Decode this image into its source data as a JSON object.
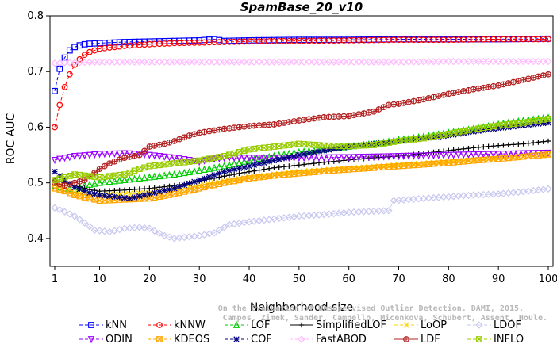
{
  "chart_data": {
    "type": "line",
    "title": "SpamBase_20_v10",
    "xlabel": "Neighborhood size",
    "ylabel": "ROC AUC",
    "xlim": [
      1,
      100
    ],
    "ylim": [
      0.35,
      0.8
    ],
    "x_ticks": [
      1,
      10,
      20,
      30,
      40,
      50,
      60,
      70,
      80,
      90,
      100
    ],
    "y_ticks": [
      0.4,
      0.5,
      0.6,
      0.7,
      0.8
    ],
    "grid": false,
    "legend_position": "bottom",
    "watermark": "Campos, Zimek, Sander, Campello, Micenkova, Schubert, Assent, Houle. On the Evaluation of Unsupervised Outlier Detection. DAMI, 2015.",
    "series": [
      {
        "name": "kNN",
        "color": "#0000ff",
        "marker": "square",
        "dash": "4,3",
        "points": [
          [
            1,
            0.665
          ],
          [
            2,
            0.705
          ],
          [
            3,
            0.725
          ],
          [
            4,
            0.738
          ],
          [
            5,
            0.744
          ],
          [
            6,
            0.747
          ],
          [
            7,
            0.749
          ],
          [
            8,
            0.75
          ],
          [
            10,
            0.751
          ],
          [
            15,
            0.753
          ],
          [
            20,
            0.754
          ],
          [
            25,
            0.755
          ],
          [
            30,
            0.756
          ],
          [
            33,
            0.758
          ],
          [
            35,
            0.755
          ],
          [
            40,
            0.756
          ],
          [
            50,
            0.757
          ],
          [
            60,
            0.757
          ],
          [
            70,
            0.758
          ],
          [
            80,
            0.758
          ],
          [
            90,
            0.758
          ],
          [
            100,
            0.759
          ]
        ]
      },
      {
        "name": "kNNW",
        "color": "#ff0000",
        "marker": "circle",
        "dash": "4,3",
        "points": [
          [
            1,
            0.6
          ],
          [
            2,
            0.64
          ],
          [
            3,
            0.672
          ],
          [
            4,
            0.695
          ],
          [
            5,
            0.712
          ],
          [
            6,
            0.722
          ],
          [
            7,
            0.73
          ],
          [
            8,
            0.735
          ],
          [
            10,
            0.741
          ],
          [
            15,
            0.746
          ],
          [
            20,
            0.749
          ],
          [
            25,
            0.751
          ],
          [
            30,
            0.752
          ],
          [
            35,
            0.753
          ],
          [
            40,
            0.754
          ],
          [
            50,
            0.755
          ],
          [
            60,
            0.756
          ],
          [
            70,
            0.757
          ],
          [
            80,
            0.757
          ],
          [
            90,
            0.758
          ],
          [
            100,
            0.758
          ]
        ]
      },
      {
        "name": "LOF",
        "color": "#00cc00",
        "marker": "triangle",
        "dash": "4,3",
        "points": [
          [
            1,
            0.495
          ],
          [
            3,
            0.49
          ],
          [
            5,
            0.488
          ],
          [
            7,
            0.495
          ],
          [
            10,
            0.5
          ],
          [
            15,
            0.505
          ],
          [
            20,
            0.51
          ],
          [
            25,
            0.515
          ],
          [
            30,
            0.522
          ],
          [
            35,
            0.53
          ],
          [
            40,
            0.54
          ],
          [
            45,
            0.548
          ],
          [
            50,
            0.555
          ],
          [
            55,
            0.56
          ],
          [
            60,
            0.565
          ],
          [
            65,
            0.57
          ],
          [
            70,
            0.577
          ],
          [
            75,
            0.583
          ],
          [
            80,
            0.59
          ],
          [
            85,
            0.597
          ],
          [
            90,
            0.605
          ],
          [
            95,
            0.612
          ],
          [
            100,
            0.617
          ]
        ]
      },
      {
        "name": "SimplifiedLOF",
        "color": "#000000",
        "marker": "plus",
        "dash": "",
        "points": [
          [
            1,
            0.505
          ],
          [
            3,
            0.5
          ],
          [
            5,
            0.495
          ],
          [
            8,
            0.488
          ],
          [
            10,
            0.485
          ],
          [
            15,
            0.487
          ],
          [
            20,
            0.49
          ],
          [
            25,
            0.495
          ],
          [
            30,
            0.503
          ],
          [
            35,
            0.512
          ],
          [
            40,
            0.52
          ],
          [
            45,
            0.527
          ],
          [
            50,
            0.532
          ],
          [
            55,
            0.537
          ],
          [
            60,
            0.541
          ],
          [
            65,
            0.545
          ],
          [
            70,
            0.548
          ],
          [
            75,
            0.553
          ],
          [
            80,
            0.558
          ],
          [
            85,
            0.563
          ],
          [
            90,
            0.567
          ],
          [
            95,
            0.57
          ],
          [
            100,
            0.575
          ]
        ]
      },
      {
        "name": "LoOP",
        "color": "#ffd700",
        "marker": "x",
        "dash": "4,3",
        "points": [
          [
            1,
            0.5
          ],
          [
            3,
            0.492
          ],
          [
            5,
            0.483
          ],
          [
            8,
            0.477
          ],
          [
            10,
            0.478
          ],
          [
            15,
            0.48
          ],
          [
            20,
            0.482
          ],
          [
            25,
            0.488
          ],
          [
            30,
            0.495
          ],
          [
            35,
            0.503
          ],
          [
            40,
            0.51
          ],
          [
            45,
            0.515
          ],
          [
            50,
            0.52
          ],
          [
            55,
            0.523
          ],
          [
            60,
            0.526
          ],
          [
            65,
            0.529
          ],
          [
            70,
            0.532
          ],
          [
            75,
            0.535
          ],
          [
            80,
            0.538
          ],
          [
            85,
            0.541
          ],
          [
            90,
            0.544
          ],
          [
            95,
            0.547
          ],
          [
            100,
            0.55
          ]
        ]
      },
      {
        "name": "LDOF",
        "color": "#c8c8f0",
        "marker": "diamond",
        "dash": "4,3",
        "points": [
          [
            1,
            0.455
          ],
          [
            3,
            0.448
          ],
          [
            5,
            0.44
          ],
          [
            7,
            0.428
          ],
          [
            9,
            0.415
          ],
          [
            12,
            0.412
          ],
          [
            15,
            0.418
          ],
          [
            18,
            0.42
          ],
          [
            20,
            0.418
          ],
          [
            23,
            0.405
          ],
          [
            25,
            0.4
          ],
          [
            28,
            0.403
          ],
          [
            30,
            0.405
          ],
          [
            33,
            0.41
          ],
          [
            36,
            0.425
          ],
          [
            40,
            0.43
          ],
          [
            45,
            0.435
          ],
          [
            50,
            0.44
          ],
          [
            55,
            0.443
          ],
          [
            60,
            0.447
          ],
          [
            65,
            0.449
          ],
          [
            68,
            0.45
          ],
          [
            69,
            0.468
          ],
          [
            72,
            0.47
          ],
          [
            75,
            0.472
          ],
          [
            80,
            0.475
          ],
          [
            85,
            0.478
          ],
          [
            90,
            0.48
          ],
          [
            95,
            0.484
          ],
          [
            100,
            0.489
          ]
        ]
      },
      {
        "name": "ODIN",
        "color": "#9900ff",
        "marker": "triangle-down",
        "dash": "4,3",
        "points": [
          [
            1,
            0.541
          ],
          [
            3,
            0.545
          ],
          [
            5,
            0.548
          ],
          [
            8,
            0.55
          ],
          [
            10,
            0.552
          ],
          [
            15,
            0.553
          ],
          [
            18,
            0.552
          ],
          [
            20,
            0.55
          ],
          [
            25,
            0.545
          ],
          [
            28,
            0.541
          ],
          [
            30,
            0.538
          ],
          [
            32,
            0.542
          ],
          [
            35,
            0.545
          ],
          [
            40,
            0.545
          ],
          [
            50,
            0.545
          ],
          [
            60,
            0.546
          ],
          [
            70,
            0.548
          ],
          [
            80,
            0.55
          ],
          [
            90,
            0.552
          ],
          [
            100,
            0.554
          ]
        ]
      },
      {
        "name": "KDEOS",
        "color": "#ffa500",
        "marker": "square-x",
        "dash": "4,3",
        "points": [
          [
            1,
            0.49
          ],
          [
            3,
            0.485
          ],
          [
            5,
            0.478
          ],
          [
            8,
            0.472
          ],
          [
            10,
            0.468
          ],
          [
            15,
            0.47
          ],
          [
            20,
            0.472
          ],
          [
            25,
            0.48
          ],
          [
            30,
            0.49
          ],
          [
            35,
            0.5
          ],
          [
            40,
            0.508
          ],
          [
            45,
            0.513
          ],
          [
            50,
            0.517
          ],
          [
            55,
            0.521
          ],
          [
            60,
            0.524
          ],
          [
            65,
            0.527
          ],
          [
            70,
            0.53
          ],
          [
            75,
            0.533
          ],
          [
            80,
            0.536
          ],
          [
            85,
            0.54
          ],
          [
            90,
            0.543
          ],
          [
            95,
            0.547
          ],
          [
            100,
            0.551
          ]
        ]
      },
      {
        "name": "COF",
        "color": "#000080",
        "marker": "star",
        "dash": "4,3",
        "points": [
          [
            1,
            0.52
          ],
          [
            3,
            0.505
          ],
          [
            5,
            0.492
          ],
          [
            8,
            0.482
          ],
          [
            10,
            0.478
          ],
          [
            13,
            0.475
          ],
          [
            16,
            0.472
          ],
          [
            20,
            0.48
          ],
          [
            25,
            0.49
          ],
          [
            30,
            0.505
          ],
          [
            35,
            0.52
          ],
          [
            40,
            0.53
          ],
          [
            45,
            0.54
          ],
          [
            50,
            0.55
          ],
          [
            55,
            0.558
          ],
          [
            60,
            0.565
          ],
          [
            65,
            0.57
          ],
          [
            70,
            0.575
          ],
          [
            75,
            0.58
          ],
          [
            80,
            0.585
          ],
          [
            85,
            0.592
          ],
          [
            90,
            0.598
          ],
          [
            95,
            0.603
          ],
          [
            100,
            0.608
          ]
        ]
      },
      {
        "name": "FastABOD",
        "color": "#ffbbff",
        "marker": "diamond",
        "dash": "4,3",
        "points": [
          [
            1,
            0.715
          ],
          [
            3,
            0.716
          ],
          [
            5,
            0.716
          ],
          [
            10,
            0.717
          ],
          [
            20,
            0.717
          ],
          [
            30,
            0.717
          ],
          [
            40,
            0.717
          ],
          [
            50,
            0.717
          ],
          [
            60,
            0.717
          ],
          [
            70,
            0.717
          ],
          [
            80,
            0.718
          ],
          [
            90,
            0.718
          ],
          [
            100,
            0.718
          ]
        ]
      },
      {
        "name": "LDF",
        "color": "#b22222",
        "marker": "circle-plus",
        "dash": "",
        "points": [
          [
            1,
            0.5
          ],
          [
            3,
            0.495
          ],
          [
            5,
            0.5
          ],
          [
            7,
            0.505
          ],
          [
            10,
            0.525
          ],
          [
            12,
            0.535
          ],
          [
            15,
            0.545
          ],
          [
            18,
            0.55
          ],
          [
            20,
            0.565
          ],
          [
            23,
            0.57
          ],
          [
            25,
            0.575
          ],
          [
            28,
            0.585
          ],
          [
            30,
            0.59
          ],
          [
            35,
            0.597
          ],
          [
            40,
            0.602
          ],
          [
            45,
            0.605
          ],
          [
            50,
            0.612
          ],
          [
            55,
            0.618
          ],
          [
            60,
            0.62
          ],
          [
            65,
            0.628
          ],
          [
            68,
            0.64
          ],
          [
            70,
            0.642
          ],
          [
            75,
            0.65
          ],
          [
            80,
            0.66
          ],
          [
            85,
            0.668
          ],
          [
            90,
            0.675
          ],
          [
            95,
            0.685
          ],
          [
            100,
            0.695
          ]
        ]
      },
      {
        "name": "INFLO",
        "color": "#99cc00",
        "marker": "square-x",
        "dash": "4,3",
        "points": [
          [
            1,
            0.505
          ],
          [
            3,
            0.51
          ],
          [
            5,
            0.515
          ],
          [
            8,
            0.512
          ],
          [
            10,
            0.51
          ],
          [
            15,
            0.515
          ],
          [
            18,
            0.525
          ],
          [
            20,
            0.53
          ],
          [
            25,
            0.535
          ],
          [
            30,
            0.54
          ],
          [
            35,
            0.548
          ],
          [
            40,
            0.56
          ],
          [
            45,
            0.565
          ],
          [
            50,
            0.57
          ],
          [
            55,
            0.567
          ],
          [
            60,
            0.566
          ],
          [
            65,
            0.568
          ],
          [
            70,
            0.575
          ],
          [
            75,
            0.58
          ],
          [
            80,
            0.588
          ],
          [
            85,
            0.596
          ],
          [
            90,
            0.603
          ],
          [
            95,
            0.608
          ],
          [
            100,
            0.615
          ]
        ]
      }
    ],
    "legend_rows": [
      [
        "kNN",
        "kNNW",
        "LOF",
        "SimplifiedLOF",
        "LoOP",
        "LDOF"
      ],
      [
        "ODIN",
        "KDEOS",
        "COF",
        "FastABOD",
        "LDF",
        "INFLO"
      ]
    ]
  }
}
